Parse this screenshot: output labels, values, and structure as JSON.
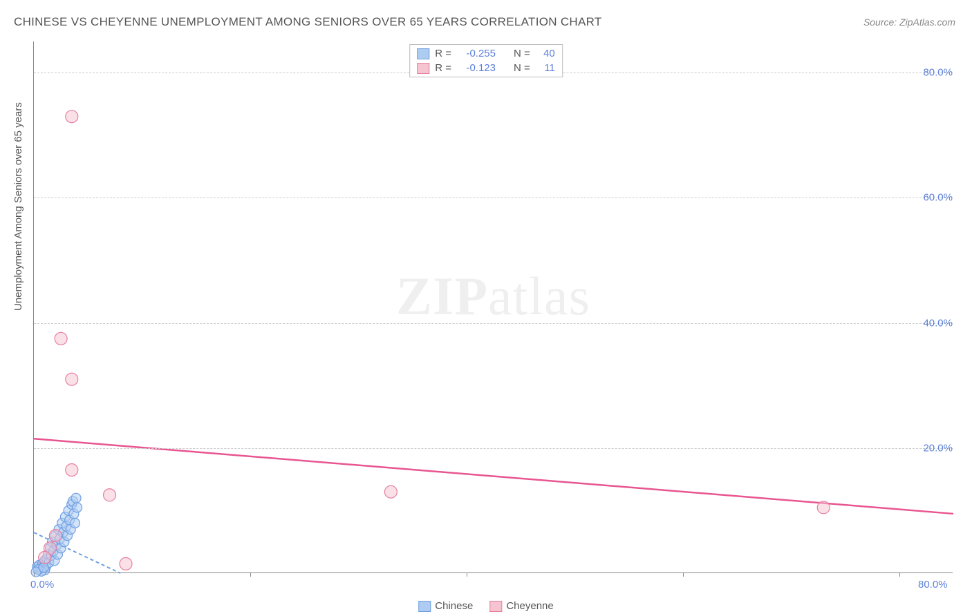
{
  "title": "CHINESE VS CHEYENNE UNEMPLOYMENT AMONG SENIORS OVER 65 YEARS CORRELATION CHART",
  "source_label": "Source: ZipAtlas.com",
  "ylabel": "Unemployment Among Seniors over 65 years",
  "watermark_bold": "ZIP",
  "watermark_light": "atlas",
  "chart": {
    "type": "scatter",
    "background_color": "#ffffff",
    "grid_color": "#cccccc",
    "axis_color": "#888888",
    "tick_label_color": "#5b7fd9",
    "xlim": [
      0,
      85
    ],
    "ylim": [
      0,
      85
    ],
    "xtick_positions": [
      0,
      20,
      40,
      60,
      80
    ],
    "xtick_labels": [
      "0.0%",
      "",
      "",
      "",
      "80.0%"
    ],
    "ytick_positions": [
      20,
      40,
      60,
      80
    ],
    "ytick_labels": [
      "20.0%",
      "40.0%",
      "60.0%",
      "80.0%"
    ],
    "series": [
      {
        "name": "Chinese",
        "fill_color": "#aeccf2",
        "stroke_color": "#6f9fe0",
        "marker_radius": 7,
        "fill_opacity": 0.55,
        "r_value": "-0.255",
        "n_value": "40",
        "trend": {
          "x1": 0,
          "y1": 6.5,
          "x2": 8,
          "y2": 0,
          "color": "#6f9fe0",
          "width": 2,
          "dash": "5,4"
        },
        "points": [
          [
            0.3,
            1.0
          ],
          [
            0.5,
            1.3
          ],
          [
            0.6,
            0.8
          ],
          [
            0.8,
            1.5
          ],
          [
            1.0,
            2.0
          ],
          [
            1.1,
            1.0
          ],
          [
            1.2,
            2.3
          ],
          [
            1.3,
            3.0
          ],
          [
            1.4,
            1.7
          ],
          [
            1.5,
            4.0
          ],
          [
            1.6,
            2.8
          ],
          [
            1.7,
            5.0
          ],
          [
            1.8,
            3.5
          ],
          [
            1.9,
            2.0
          ],
          [
            2.0,
            6.0
          ],
          [
            2.1,
            4.5
          ],
          [
            2.2,
            3.0
          ],
          [
            2.3,
            7.0
          ],
          [
            2.4,
            5.5
          ],
          [
            2.5,
            4.0
          ],
          [
            2.6,
            8.0
          ],
          [
            2.7,
            6.5
          ],
          [
            2.8,
            5.0
          ],
          [
            2.9,
            9.0
          ],
          [
            3.0,
            7.5
          ],
          [
            3.1,
            6.0
          ],
          [
            3.2,
            10.0
          ],
          [
            3.3,
            8.5
          ],
          [
            3.4,
            7.0
          ],
          [
            3.5,
            11.0
          ],
          [
            3.6,
            11.5
          ],
          [
            3.7,
            9.5
          ],
          [
            3.8,
            8.0
          ],
          [
            3.9,
            12.0
          ],
          [
            4.0,
            10.5
          ],
          [
            1.0,
            0.5
          ],
          [
            0.7,
            0.3
          ],
          [
            0.4,
            0.6
          ],
          [
            0.2,
            0.2
          ],
          [
            0.9,
            0.9
          ]
        ]
      },
      {
        "name": "Cheyenne",
        "fill_color": "#f6c4d0",
        "stroke_color": "#e77ea0",
        "marker_radius": 9,
        "fill_opacity": 0.5,
        "r_value": "-0.123",
        "n_value": "11",
        "trend": {
          "x1": 0,
          "y1": 21.5,
          "x2": 85,
          "y2": 9.5,
          "color": "#e85590",
          "width": 2.5,
          "dash": ""
        },
        "points": [
          [
            3.5,
            73.0
          ],
          [
            2.5,
            37.5
          ],
          [
            3.5,
            31.0
          ],
          [
            3.5,
            16.5
          ],
          [
            7.0,
            12.5
          ],
          [
            33.0,
            13.0
          ],
          [
            73.0,
            10.5
          ],
          [
            2.0,
            6.0
          ],
          [
            1.5,
            4.0
          ],
          [
            1.0,
            2.5
          ],
          [
            8.5,
            1.5
          ]
        ]
      }
    ]
  },
  "legend_bottom": {
    "items": [
      {
        "label": "Chinese",
        "fill": "#aeccf2",
        "stroke": "#6f9fe0"
      },
      {
        "label": "Cheyenne",
        "fill": "#f6c4d0",
        "stroke": "#e77ea0"
      }
    ]
  }
}
